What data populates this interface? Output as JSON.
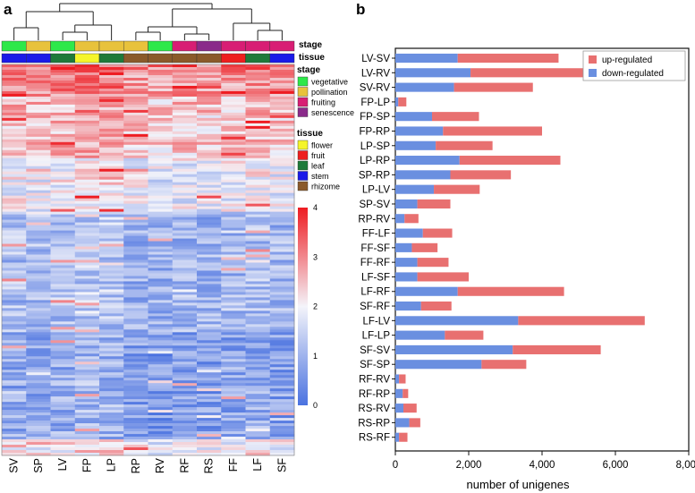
{
  "panels": {
    "a": "a",
    "b": "b"
  },
  "heatmap": {
    "columns": [
      "SV",
      "SP",
      "LV",
      "FP",
      "LP",
      "RP",
      "RV",
      "RF",
      "RS",
      "FF",
      "LF",
      "SF"
    ],
    "stage_label": "stage",
    "tissue_label": "tissue",
    "stage_legend": [
      {
        "label": "vegetative",
        "color": "#2ee84a"
      },
      {
        "label": "pollination",
        "color": "#e8c23c"
      },
      {
        "label": "fruiting",
        "color": "#d81e74"
      },
      {
        "label": "senescence",
        "color": "#8a2a8a"
      }
    ],
    "tissue_legend": [
      {
        "label": "flower",
        "color": "#f5f52a"
      },
      {
        "label": "fruit",
        "color": "#ee1e1e"
      },
      {
        "label": "leaf",
        "color": "#1e7a3a"
      },
      {
        "label": "stem",
        "color": "#1a1ae8"
      },
      {
        "label": "rhizome",
        "color": "#8a5a2a"
      }
    ],
    "stage_colors": [
      "#2ee84a",
      "#e8c23c",
      "#2ee84a",
      "#e8c23c",
      "#e8c23c",
      "#e8c23c",
      "#2ee84a",
      "#d81e74",
      "#8a2a8a",
      "#d81e74",
      "#d81e74",
      "#d81e74"
    ],
    "tissue_colors": [
      "#1a1ae8",
      "#1a1ae8",
      "#1e7a3a",
      "#f5f52a",
      "#1e7a3a",
      "#8a5a2a",
      "#8a5a2a",
      "#8a5a2a",
      "#8a5a2a",
      "#ee1e1e",
      "#1e7a3a",
      "#1a1ae8"
    ],
    "scale_ticks": [
      "0",
      "1",
      "2",
      "3",
      "4"
    ],
    "scale_range": [
      0,
      4
    ],
    "colors": {
      "low": "#4a72e0",
      "mid": "#f4f4fa",
      "high": "#ee1c22"
    }
  },
  "chart_data": {
    "type": "bar",
    "orientation": "horizontal",
    "stacked": true,
    "categories": [
      "LV-SV",
      "LV-RV",
      "SV-RV",
      "FP-LP",
      "FP-SP",
      "FP-RP",
      "LP-SP",
      "LP-RP",
      "SP-RP",
      "LP-LV",
      "SP-SV",
      "RP-RV",
      "FF-LF",
      "FF-SF",
      "FF-RF",
      "LF-SF",
      "LF-RF",
      "SF-RF",
      "LF-LV",
      "LF-LP",
      "SF-SV",
      "SF-SP",
      "RF-RV",
      "RF-RP",
      "RS-RV",
      "RS-RP",
      "RS-RF"
    ],
    "series": [
      {
        "name": "down-regulated",
        "color": "#6a8fe0",
        "values": [
          1700,
          2050,
          1600,
          80,
          1000,
          1300,
          1100,
          1750,
          1500,
          1050,
          600,
          250,
          750,
          450,
          600,
          600,
          1700,
          700,
          3350,
          1350,
          3200,
          2350,
          100,
          200,
          220,
          380,
          100
        ]
      },
      {
        "name": "up-regulated",
        "color": "#e87070",
        "values": [
          2750,
          3400,
          2150,
          220,
          1280,
          2700,
          1550,
          2750,
          1650,
          1250,
          900,
          380,
          800,
          700,
          850,
          1400,
          2900,
          830,
          3450,
          1050,
          2400,
          1220,
          180,
          150,
          360,
          300,
          230
        ]
      }
    ],
    "xlabel": "number of unigenes",
    "xlim": [
      0,
      8000
    ],
    "xticks": [
      "0",
      "2,000",
      "4,000",
      "6,000",
      "8,000"
    ],
    "legend_position": "top-right"
  }
}
